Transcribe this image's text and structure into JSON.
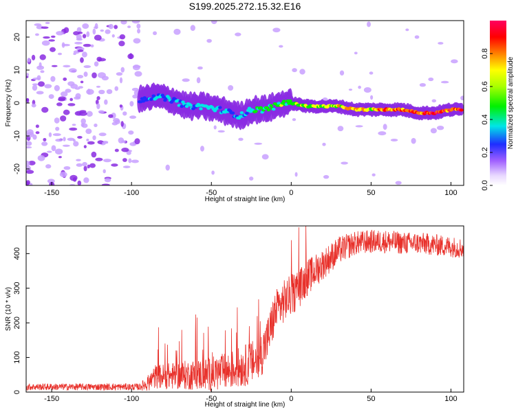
{
  "title": "S199.2025.272.15.32.E16",
  "colors": {
    "snr_line": "#e8302a",
    "axis": "#000000",
    "background": "#ffffff",
    "colormap": [
      "#f0e6ff",
      "#c8a0ff",
      "#8a2be2",
      "#1e2dff",
      "#00e6e6",
      "#00f000",
      "#ffff00",
      "#ff8000",
      "#ff0000",
      "#ff0060"
    ]
  },
  "chart_data": [
    {
      "type": "heatmap",
      "name": "spectrogram",
      "xlabel": "Height of straight line (km)",
      "ylabel": "Frequency (Hz)",
      "xlim": [
        -166,
        108
      ],
      "ylim": [
        -25,
        25
      ],
      "x_ticks": [
        -150,
        -100,
        -50,
        0,
        50,
        100
      ],
      "y_ticks": [
        -20,
        -10,
        0,
        10,
        20
      ],
      "colorbar": {
        "label": "Normalized spectral amplitude",
        "range": [
          0.0,
          1.0
        ],
        "ticks": [
          "0.0",
          "0.2",
          "0.4",
          "0.6",
          "0.8"
        ]
      },
      "ridge_track": {
        "x": [
          -95,
          -85,
          -75,
          -65,
          -55,
          -45,
          -38,
          -32,
          -25,
          -18,
          -10,
          -5,
          0,
          10,
          20,
          30,
          40,
          50,
          60,
          70,
          80,
          90,
          100,
          107
        ],
        "freq": [
          1,
          2,
          1,
          -1,
          -1,
          -2,
          -3,
          -4,
          -2,
          -2,
          -1,
          0,
          0,
          -1,
          -1,
          -1,
          -2,
          -2,
          -2,
          -2,
          -3,
          -3,
          -2,
          -2
        ],
        "amplitude": [
          0.3,
          0.3,
          0.35,
          0.35,
          0.4,
          0.35,
          0.3,
          0.35,
          0.4,
          0.45,
          0.5,
          0.55,
          0.55,
          0.6,
          0.6,
          0.65,
          0.75,
          0.7,
          0.8,
          0.85,
          0.9,
          0.9,
          0.85,
          0.85
        ]
      },
      "noise_region_x": [
        -166,
        -95
      ]
    },
    {
      "type": "line",
      "name": "snr",
      "xlabel": "Height of straight line (km)",
      "ylabel": "SNR (10 * v/v)",
      "xlim": [
        -166,
        108
      ],
      "ylim": [
        0,
        480
      ],
      "x_ticks": [
        -150,
        -100,
        -50,
        0,
        50,
        100
      ],
      "y_ticks": [
        0,
        100,
        200,
        300,
        400
      ],
      "trend": {
        "x": [
          -166,
          -95,
          -90,
          -85,
          -80,
          -70,
          -60,
          -50,
          -40,
          -30,
          -20,
          -15,
          -10,
          -5,
          0,
          5,
          10,
          15,
          20,
          25,
          30,
          40,
          50,
          60,
          70,
          80,
          90,
          100,
          108
        ],
        "y": [
          15,
          15,
          25,
          45,
          45,
          48,
          50,
          52,
          60,
          75,
          95,
          150,
          230,
          260,
          280,
          300,
          330,
          350,
          370,
          390,
          410,
          430,
          435,
          435,
          430,
          430,
          425,
          420,
          415
        ]
      },
      "spread": {
        "x": [
          -166,
          -95,
          -85,
          -60,
          -40,
          -20,
          -10,
          0,
          20,
          40,
          108
        ],
        "y": [
          10,
          10,
          35,
          45,
          55,
          65,
          65,
          60,
          45,
          35,
          30
        ]
      }
    }
  ]
}
